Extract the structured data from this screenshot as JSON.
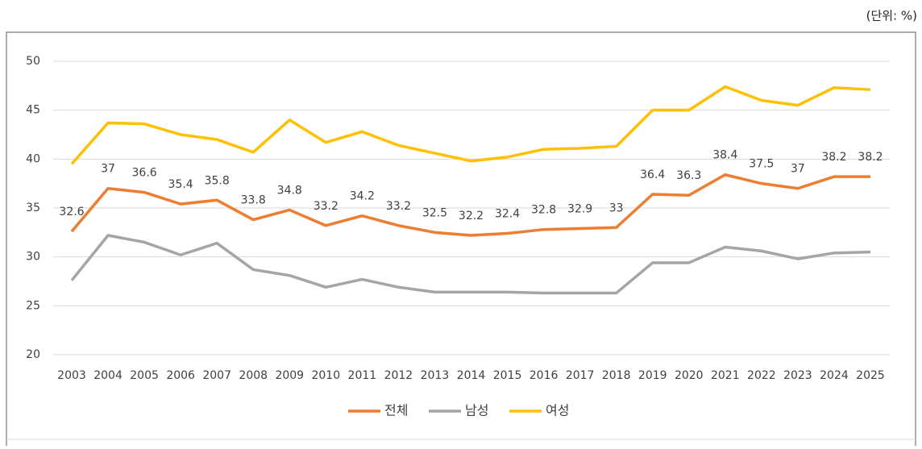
{
  "chart_data": {
    "type": "line",
    "unit_label": "(단위: %)",
    "categories": [
      "2003",
      "2004",
      "2005",
      "2006",
      "2007",
      "2008",
      "2009",
      "2010",
      "2011",
      "2012",
      "2013",
      "2014",
      "2015",
      "2016",
      "2017",
      "2018",
      "2019",
      "2020",
      "2021",
      "2022",
      "2023",
      "2024",
      "2025"
    ],
    "series": [
      {
        "name": "전체",
        "color": "#ed7d31",
        "labels": true,
        "values": [
          32.6,
          37,
          36.6,
          35.4,
          35.8,
          33.8,
          34.8,
          33.2,
          34.2,
          33.2,
          32.5,
          32.2,
          32.4,
          32.8,
          32.9,
          33,
          36.4,
          36.3,
          38.4,
          37.5,
          37,
          38.2,
          38.2
        ]
      },
      {
        "name": "남성",
        "color": "#a5a5a5",
        "labels": false,
        "values": [
          27.6,
          32.2,
          31.5,
          30.2,
          31.4,
          28.7,
          28.1,
          26.9,
          27.7,
          26.9,
          26.4,
          26.4,
          26.4,
          26.3,
          26.3,
          26.3,
          29.4,
          29.4,
          31.0,
          30.6,
          29.8,
          30.4,
          30.5
        ]
      },
      {
        "name": "여성",
        "color": "#ffc000",
        "labels": false,
        "values": [
          39.5,
          43.7,
          43.6,
          42.5,
          42.0,
          40.7,
          44.0,
          41.7,
          42.8,
          41.4,
          40.6,
          39.8,
          40.2,
          41.0,
          41.1,
          41.3,
          45.0,
          45.0,
          47.4,
          46.0,
          45.5,
          47.3,
          47.1
        ]
      }
    ],
    "ylim": [
      20,
      50
    ],
    "yticks": [
      20,
      25,
      30,
      35,
      40,
      45,
      50
    ],
    "grid": true,
    "legend": "bottom"
  }
}
